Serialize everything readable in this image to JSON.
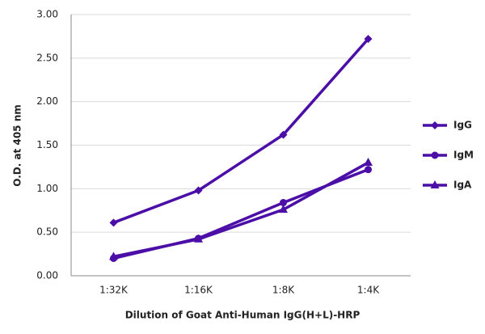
{
  "chart_data": {
    "type": "line",
    "x_label": "Dilution of Goat Anti-Human IgG(H+L)-HRP",
    "y_label": "O.D. at 405 nm",
    "categories": [
      "1:32K",
      "1:16K",
      "1:8K",
      "1:4K"
    ],
    "series": [
      {
        "name": "IgG",
        "color": "#4b0ea6",
        "marker": "diamond",
        "values": [
          0.61,
          0.98,
          1.62,
          2.72
        ]
      },
      {
        "name": "IgM",
        "color": "#4b0ea6",
        "marker": "circle",
        "values": [
          0.2,
          0.43,
          0.84,
          1.22
        ]
      },
      {
        "name": "IgA",
        "color": "#4b0ea6",
        "marker": "triangle",
        "values": [
          0.22,
          0.42,
          0.76,
          1.3
        ]
      }
    ],
    "ylim": [
      0,
      3
    ],
    "yticks": [
      {
        "value": 0,
        "label": "0.00"
      },
      {
        "value": 0.5,
        "label": "0.50"
      },
      {
        "value": 1,
        "label": "1.00"
      },
      {
        "value": 1.5,
        "label": "1.50"
      },
      {
        "value": 2,
        "label": "2.00"
      },
      {
        "value": 2.5,
        "label": "2.50"
      },
      {
        "value": 3,
        "label": "3.00"
      }
    ],
    "grid": true,
    "legend": "right"
  }
}
